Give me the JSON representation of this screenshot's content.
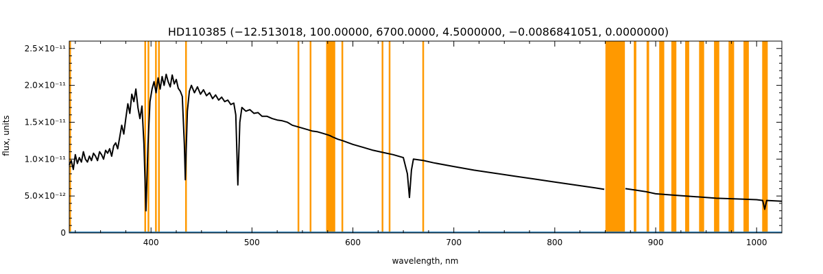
{
  "chart_data": {
    "type": "line",
    "title": "HD110385    (−12.513018, 100.00000, 6700.0000, 4.5000000, −0.0086841051, 0.0000000)",
    "xlabel": "wavelength, nm",
    "ylabel": "flux, units",
    "xlim": [
      319,
      1025
    ],
    "ylim": [
      -3e-15,
      2.6e-11
    ],
    "x_ticks": [
      {
        "value": 400,
        "label": "400"
      },
      {
        "value": 500,
        "label": "500"
      },
      {
        "value": 600,
        "label": "600"
      },
      {
        "value": 700,
        "label": "700"
      },
      {
        "value": 800,
        "label": "800"
      },
      {
        "value": 900,
        "label": "900"
      },
      {
        "value": 1000,
        "label": "1000"
      }
    ],
    "y_ticks": [
      {
        "value": 0,
        "label": "0"
      },
      {
        "value": 5e-12,
        "label": "5.0×10⁻¹²"
      },
      {
        "value": 1e-11,
        "label": "1.0×10⁻¹¹"
      },
      {
        "value": 1.5e-11,
        "label": "1.5×10⁻¹¹"
      },
      {
        "value": 2e-11,
        "label": "2.0×10⁻¹¹"
      },
      {
        "value": 2.5e-11,
        "label": "2.5×10⁻¹¹"
      }
    ],
    "grid": false,
    "colors": {
      "spectrum": "#000000",
      "error": "#1f77b4",
      "mask": "#ff9900"
    },
    "mask_bands": [
      [
        319.0,
        320.5
      ],
      [
        393.4,
        394.4
      ],
      [
        396.6,
        397.8
      ],
      [
        404.0,
        405.3
      ],
      [
        407.0,
        408.2
      ],
      [
        433.8,
        435.3
      ],
      [
        545.2,
        546.4
      ],
      [
        557.2,
        558.4
      ],
      [
        573.5,
        582.5
      ],
      [
        588.7,
        590.0
      ],
      [
        628.5,
        629.8
      ],
      [
        635.5,
        636.8
      ],
      [
        668.8,
        670.2
      ],
      [
        850.2,
        869.5
      ],
      [
        878.3,
        880.8
      ],
      [
        891.0,
        893.5
      ],
      [
        903.5,
        908.5
      ],
      [
        915.5,
        920.5
      ],
      [
        929.2,
        933.2
      ],
      [
        943.0,
        948.0
      ],
      [
        957.8,
        963.0
      ],
      [
        972.2,
        977.7
      ],
      [
        987.0,
        992.3
      ],
      [
        1005.5,
        1011.0
      ]
    ],
    "series": [
      {
        "role": "spectrum",
        "x": [
          319,
          321,
          323,
          325,
          327,
          329,
          331,
          333,
          335,
          337,
          339,
          341,
          343,
          345,
          347,
          349,
          351,
          353,
          355,
          357,
          359,
          361,
          363,
          365,
          367,
          369,
          371,
          373,
          375,
          377,
          379,
          381,
          383,
          385,
          387,
          389,
          391,
          393,
          395,
          397,
          399,
          401,
          403,
          405,
          407,
          409,
          411,
          413,
          415,
          417,
          419,
          421,
          423,
          425,
          427,
          429,
          431,
          433,
          434,
          436,
          438,
          440,
          443,
          446,
          449,
          452,
          455,
          458,
          461,
          464,
          467,
          470,
          473,
          476,
          479,
          482,
          484,
          486,
          488,
          490,
          494,
          498,
          502,
          506,
          510,
          515,
          520,
          525,
          530,
          535,
          540,
          545,
          550,
          555,
          560,
          565,
          570,
          575,
          577,
          580,
          585,
          590,
          600,
          610,
          620,
          630,
          640,
          650,
          654,
          656,
          658,
          660,
          670,
          680,
          700,
          720,
          740,
          760,
          780,
          800,
          820,
          840,
          849,
          852,
          866,
          870,
          880,
          890,
          900,
          920,
          940,
          960,
          980,
          1000,
          1006,
          1008,
          1010,
          1025
        ],
        "values": [
          9.2e-12,
          9.8e-12,
          8.6e-12,
          1.06e-11,
          9.4e-12,
          1.02e-11,
          9.6e-12,
          1.1e-11,
          1e-11,
          9.6e-12,
          1.04e-11,
          9.8e-12,
          1.08e-11,
          1.04e-11,
          9.8e-12,
          1.1e-11,
          1.06e-11,
          1e-11,
          1.12e-11,
          1.08e-11,
          1.14e-11,
          1.04e-11,
          1.18e-11,
          1.22e-11,
          1.14e-11,
          1.3e-11,
          1.46e-11,
          1.34e-11,
          1.55e-11,
          1.75e-11,
          1.62e-11,
          1.88e-11,
          1.78e-11,
          1.95e-11,
          1.7e-11,
          1.55e-11,
          1.72e-11,
          1.2e-11,
          3e-12,
          1.2e-11,
          1.78e-11,
          1.95e-11,
          2.05e-11,
          1.9e-11,
          2.1e-11,
          1.95e-11,
          2.12e-11,
          2e-11,
          2.15e-11,
          2.05e-11,
          1.98e-11,
          2.14e-11,
          2.02e-11,
          2.08e-11,
          1.96e-11,
          1.92e-11,
          1.85e-11,
          1.2e-11,
          7.2e-12,
          1.65e-11,
          1.92e-11,
          2e-11,
          1.9e-11,
          1.98e-11,
          1.88e-11,
          1.94e-11,
          1.86e-11,
          1.9e-11,
          1.82e-11,
          1.87e-11,
          1.8e-11,
          1.84e-11,
          1.78e-11,
          1.8e-11,
          1.74e-11,
          1.76e-11,
          1.6e-11,
          6.5e-12,
          1.5e-11,
          1.7e-11,
          1.65e-11,
          1.67e-11,
          1.62e-11,
          1.63e-11,
          1.58e-11,
          1.58e-11,
          1.55e-11,
          1.53e-11,
          1.52e-11,
          1.5e-11,
          1.46e-11,
          1.44e-11,
          1.42e-11,
          1.4e-11,
          1.38e-11,
          1.37e-11,
          1.35e-11,
          1.33e-11,
          1.32e-11,
          1.3e-11,
          1.27e-11,
          1.25e-11,
          1.2e-11,
          1.16e-11,
          1.12e-11,
          1.09e-11,
          1.06e-11,
          1.02e-11,
          8e-12,
          4.8e-12,
          8.5e-12,
          1e-11,
          9.8e-12,
          9.5e-12,
          9e-12,
          8.5e-12,
          8.1e-12,
          7.7e-12,
          7.3e-12,
          6.9e-12,
          6.5e-12,
          6.1e-12,
          5.9e-12,
          null,
          null,
          6e-12,
          5.8e-12,
          5.6e-12,
          5.3e-12,
          5.1e-12,
          4.9e-12,
          4.7e-12,
          4.6e-12,
          4.5e-12,
          4.4e-12,
          3.2e-12,
          4.4e-12,
          4.3e-12
        ]
      },
      {
        "role": "error",
        "x": [
          319,
          1025
        ],
        "values": [
          1e-13,
          1e-13
        ]
      }
    ]
  }
}
